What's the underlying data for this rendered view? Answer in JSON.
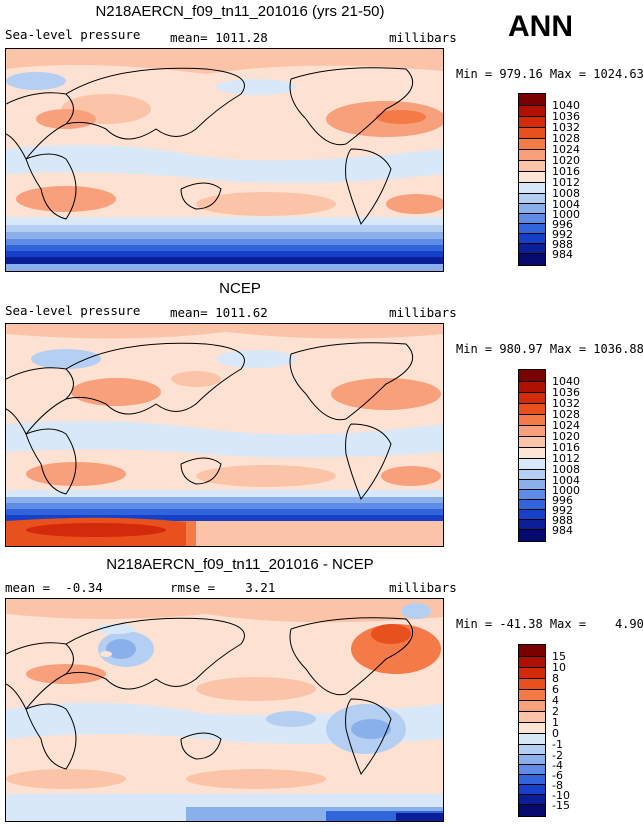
{
  "season": "ANN",
  "panels": [
    {
      "title": "N218AERCN_f09_tn11_201016 (yrs 21-50)",
      "variable": "Sea-level pressure",
      "stat_text": "mean= 1011.28",
      "units": "millibars",
      "minmax": "Min = 979.16 Max = 1024.63"
    },
    {
      "title": "NCEP",
      "variable": "Sea-level pressure",
      "stat_text": "mean= 1011.62",
      "units": "millibars",
      "minmax": "Min = 980.97 Max = 1036.88"
    },
    {
      "title": "N218AERCN_f09_tn11_201016 - NCEP",
      "variable": "mean =  -0.34",
      "stat_text": "rmse =    3.21",
      "units": "millibars",
      "minmax": "Min = -41.38 Max =    4.90"
    }
  ],
  "colorbars": {
    "absolute": {
      "labels": [
        "1040",
        "1036",
        "1032",
        "1028",
        "1024",
        "1020",
        "1016",
        "1012",
        "1008",
        "1004",
        "1000",
        "996",
        "992",
        "988",
        "984"
      ],
      "colors": [
        "#7a0000",
        "#b01000",
        "#d42a0c",
        "#e8501e",
        "#f47a48",
        "#f8a07c",
        "#fbc4a8",
        "#fde5d6",
        "#d8e8f8",
        "#b4cff2",
        "#8ab0ec",
        "#5f8ce6",
        "#3264dc",
        "#1640c8",
        "#0a1e98",
        "#050a6e"
      ]
    },
    "difference": {
      "labels": [
        "15",
        "10",
        "8",
        "6",
        "4",
        "2",
        "1",
        "0",
        "-1",
        "-2",
        "-4",
        "-6",
        "-8",
        "-10",
        "-15"
      ],
      "colors": [
        "#7a0000",
        "#b01000",
        "#d42a0c",
        "#e8501e",
        "#f47a48",
        "#f8a07c",
        "#fbc4a8",
        "#fde5d6",
        "#d8e8f8",
        "#b4cff2",
        "#8ab0ec",
        "#5f8ce6",
        "#3264dc",
        "#1640c8",
        "#0a1e98",
        "#050a6e"
      ]
    }
  }
}
